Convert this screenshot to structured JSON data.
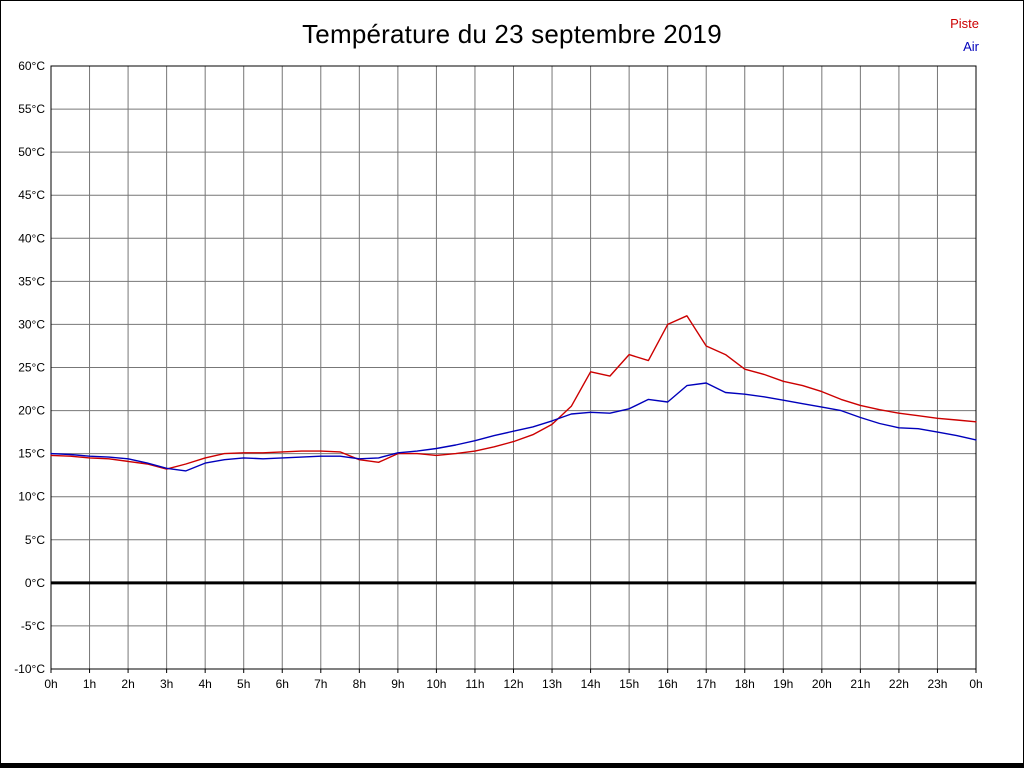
{
  "page": {
    "background": "#ffffff",
    "border_color": "#000000",
    "grid_color": "#777777"
  },
  "chart_data": {
    "type": "line",
    "title": "Température du 23 septembre 2019",
    "xlabel": "",
    "ylabel": "",
    "xlim": [
      0,
      24
    ],
    "ylim": [
      -10,
      60
    ],
    "grid": true,
    "zero_line": {
      "value": 0,
      "color": "#000000",
      "width": 3
    },
    "y_ticks": [
      60,
      55,
      50,
      45,
      40,
      35,
      30,
      25,
      20,
      15,
      10,
      5,
      0,
      -5,
      -10
    ],
    "y_tick_labels": [
      "60°C",
      "55°C",
      "50°C",
      "45°C",
      "40°C",
      "35°C",
      "30°C",
      "25°C",
      "20°C",
      "15°C",
      "10°C",
      "5°C",
      "0°C",
      "-5°C",
      "-10°C"
    ],
    "x_ticks": [
      0,
      1,
      2,
      3,
      4,
      5,
      6,
      7,
      8,
      9,
      10,
      11,
      12,
      13,
      14,
      15,
      16,
      17,
      18,
      19,
      20,
      21,
      22,
      23,
      24
    ],
    "x_tick_labels": [
      "0h",
      "1h",
      "2h",
      "3h",
      "4h",
      "5h",
      "6h",
      "7h",
      "8h",
      "9h",
      "10h",
      "11h",
      "12h",
      "13h",
      "14h",
      "15h",
      "16h",
      "17h",
      "18h",
      "19h",
      "20h",
      "21h",
      "22h",
      "23h",
      "0h"
    ],
    "legend": {
      "position": "top-right",
      "entries": [
        {
          "label": "Piste",
          "color": "#cc0000"
        },
        {
          "label": "Air",
          "color": "#0000bb"
        }
      ]
    },
    "x": [
      0,
      0.5,
      1,
      1.5,
      2,
      2.5,
      3,
      3.5,
      4,
      4.5,
      5,
      5.5,
      6,
      6.5,
      7,
      7.5,
      8,
      8.5,
      9,
      9.5,
      10,
      10.5,
      11,
      11.5,
      12,
      12.5,
      13,
      13.5,
      14,
      14.5,
      15,
      15.5,
      16,
      16.5,
      17,
      17.5,
      18,
      18.5,
      19,
      19.5,
      20,
      20.5,
      21,
      21.5,
      22,
      22.5,
      23,
      23.5,
      24
    ],
    "series": [
      {
        "name": "Piste",
        "color": "#cc0000",
        "values": [
          14.8,
          14.7,
          14.5,
          14.4,
          14.1,
          13.8,
          13.2,
          13.8,
          14.5,
          15.0,
          15.1,
          15.1,
          15.2,
          15.3,
          15.3,
          15.2,
          14.3,
          14.0,
          15.0,
          15.0,
          14.8,
          15.0,
          15.3,
          15.8,
          16.4,
          17.2,
          18.4,
          20.5,
          24.5,
          24.0,
          26.5,
          25.8,
          30.0,
          31.0,
          27.5,
          26.5,
          24.8,
          24.2,
          23.4,
          22.9,
          22.2,
          21.3,
          20.6,
          20.1,
          19.7,
          19.4,
          19.1,
          18.9,
          18.7
        ]
      },
      {
        "name": "Air",
        "color": "#0000bb",
        "values": [
          15.0,
          14.9,
          14.7,
          14.6,
          14.4,
          13.9,
          13.3,
          13.0,
          13.9,
          14.3,
          14.5,
          14.4,
          14.5,
          14.6,
          14.7,
          14.7,
          14.4,
          14.5,
          15.1,
          15.3,
          15.6,
          16.0,
          16.5,
          17.1,
          17.6,
          18.1,
          18.8,
          19.6,
          19.8,
          19.7,
          20.2,
          21.3,
          21.0,
          22.9,
          23.2,
          22.1,
          21.9,
          21.6,
          21.2,
          20.8,
          20.4,
          20.0,
          19.2,
          18.5,
          18.0,
          17.9,
          17.5,
          17.1,
          16.6
        ]
      }
    ]
  }
}
